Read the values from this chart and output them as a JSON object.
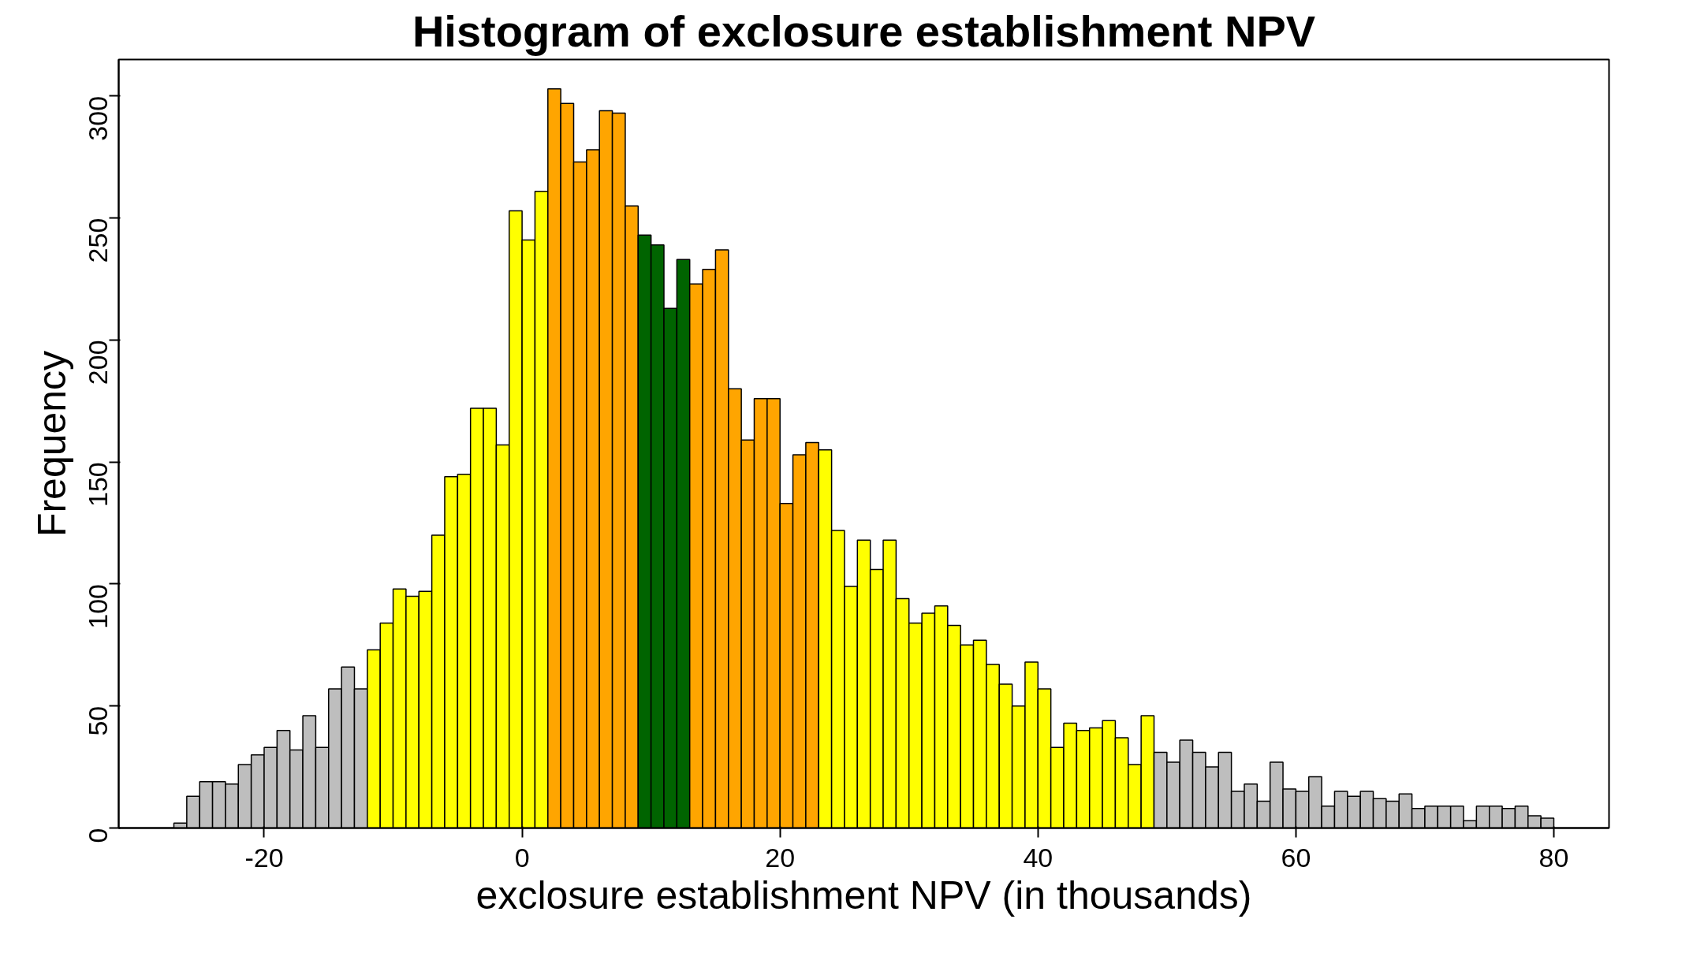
{
  "chart_data": {
    "type": "histogram",
    "title": "Histogram of exclosure establishment NPV",
    "xlabel": "exclosure establishment NPV (in thousands)",
    "ylabel": "Frequency",
    "bins": [
      -27,
      -26,
      -25,
      -24,
      -23,
      -22,
      -21,
      -20,
      -19,
      -18,
      -17,
      -16,
      -15,
      -14,
      -13,
      -12,
      -11,
      -10,
      -9,
      -8,
      -7,
      -6,
      -5,
      -4,
      -3,
      -2,
      -1,
      0,
      1,
      2,
      3,
      4,
      5,
      6,
      7,
      8,
      9,
      10,
      11,
      12,
      13,
      14,
      15,
      16,
      17,
      18,
      19,
      20,
      21,
      22,
      23,
      24,
      25,
      26,
      27,
      28,
      29,
      30,
      31,
      32,
      33,
      34,
      35,
      36,
      37,
      38,
      39,
      40,
      41,
      42,
      43,
      44,
      45,
      46,
      47,
      48,
      49,
      50,
      51,
      52,
      53,
      54,
      55,
      56,
      57,
      58,
      59,
      60,
      61,
      62,
      63,
      64,
      65,
      66,
      67,
      68,
      69,
      70,
      71,
      72,
      73,
      74,
      75,
      76,
      77,
      78,
      79,
      80
    ],
    "values": [
      2,
      13,
      19,
      19,
      18,
      26,
      30,
      33,
      40,
      32,
      46,
      33,
      57,
      66,
      57,
      73,
      84,
      98,
      95,
      97,
      120,
      144,
      145,
      172,
      172,
      157,
      253,
      241,
      261,
      303,
      297,
      273,
      278,
      294,
      293,
      255,
      243,
      239,
      213,
      233,
      223,
      229,
      237,
      180,
      159,
      176,
      176,
      133,
      153,
      158,
      155,
      122,
      99,
      118,
      106,
      118,
      94,
      84,
      88,
      91,
      83,
      75,
      77,
      67,
      59,
      50,
      68,
      57,
      33,
      43,
      40,
      41,
      44,
      37,
      26,
      46,
      31,
      27,
      36,
      31,
      25,
      31,
      15,
      18,
      11,
      27,
      16,
      15,
      21,
      9,
      15,
      13,
      15,
      12,
      11,
      14,
      8,
      9,
      9,
      9,
      3,
      9,
      9,
      8,
      9,
      5,
      4
    ],
    "colors": [
      "#bebebe",
      "#bebebe",
      "#bebebe",
      "#bebebe",
      "#bebebe",
      "#bebebe",
      "#bebebe",
      "#bebebe",
      "#bebebe",
      "#bebebe",
      "#bebebe",
      "#bebebe",
      "#bebebe",
      "#bebebe",
      "#bebebe",
      "#ffff00",
      "#ffff00",
      "#ffff00",
      "#ffff00",
      "#ffff00",
      "#ffff00",
      "#ffff00",
      "#ffff00",
      "#ffff00",
      "#ffff00",
      "#ffff00",
      "#ffff00",
      "#ffff00",
      "#ffff00",
      "#ffa500",
      "#ffa500",
      "#ffa500",
      "#ffa500",
      "#ffa500",
      "#ffa500",
      "#ffa500",
      "#006400",
      "#006400",
      "#006400",
      "#006400",
      "#ffa500",
      "#ffa500",
      "#ffa500",
      "#ffa500",
      "#ffa500",
      "#ffa500",
      "#ffa500",
      "#ffa500",
      "#ffa500",
      "#ffa500",
      "#ffff00",
      "#ffff00",
      "#ffff00",
      "#ffff00",
      "#ffff00",
      "#ffff00",
      "#ffff00",
      "#ffff00",
      "#ffff00",
      "#ffff00",
      "#ffff00",
      "#ffff00",
      "#ffff00",
      "#ffff00",
      "#ffff00",
      "#ffff00",
      "#ffff00",
      "#ffff00",
      "#ffff00",
      "#ffff00",
      "#ffff00",
      "#ffff00",
      "#ffff00",
      "#ffff00",
      "#ffff00",
      "#ffff00",
      "#bebebe",
      "#bebebe",
      "#bebebe",
      "#bebebe",
      "#bebebe",
      "#bebebe",
      "#bebebe",
      "#bebebe",
      "#bebebe",
      "#bebebe",
      "#bebebe",
      "#bebebe",
      "#bebebe",
      "#bebebe",
      "#bebebe",
      "#bebebe",
      "#bebebe",
      "#bebebe",
      "#bebebe",
      "#bebebe",
      "#bebebe",
      "#bebebe",
      "#bebebe",
      "#bebebe",
      "#bebebe",
      "#bebebe",
      "#bebebe",
      "#bebebe",
      "#bebebe",
      "#bebebe",
      "#bebebe"
    ],
    "xlim": [
      -31.28,
      84.28
    ],
    "ylim": [
      0,
      315
    ],
    "xticks": [
      -20,
      0,
      20,
      40,
      60,
      80
    ],
    "yticks": [
      0,
      50,
      100,
      150,
      200,
      250,
      300
    ]
  }
}
